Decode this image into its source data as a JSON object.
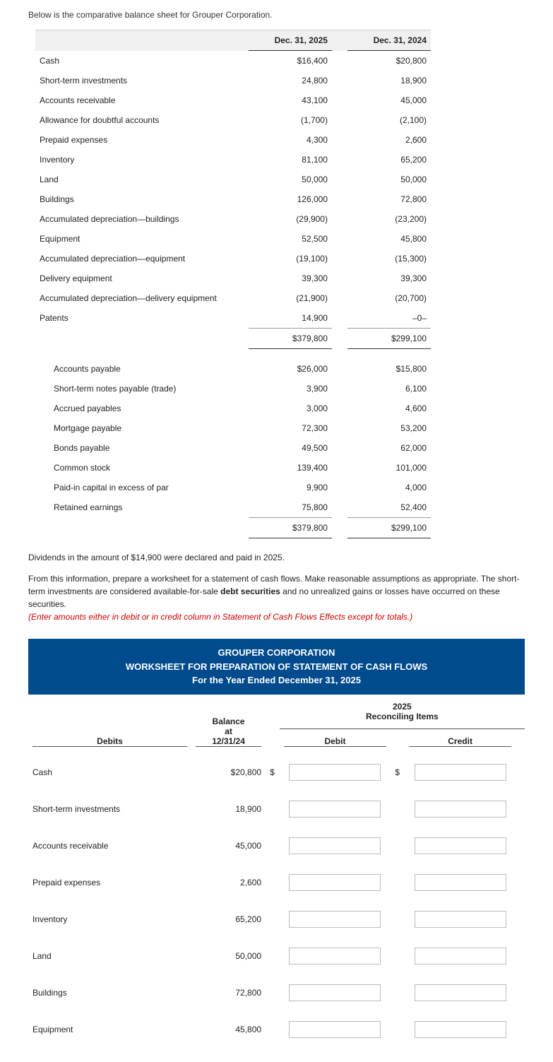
{
  "intro": "Below is the comparative balance sheet for Grouper Corporation.",
  "col_headers": {
    "c1": "Dec. 31, 2025",
    "c2": "Dec. 31, 2024"
  },
  "assets": [
    {
      "label": "Cash",
      "v1": "$16,400",
      "v2": "$20,800"
    },
    {
      "label": "Short-term investments",
      "v1": "24,800",
      "v2": "18,900"
    },
    {
      "label": "Accounts receivable",
      "v1": "43,100",
      "v2": "45,000"
    },
    {
      "label": "Allowance for doubtful accounts",
      "v1": "(1,700)",
      "v2": "(2,100)"
    },
    {
      "label": "Prepaid expenses",
      "v1": "4,300",
      "v2": "2,600"
    },
    {
      "label": "Inventory",
      "v1": "81,100",
      "v2": "65,200"
    },
    {
      "label": "Land",
      "v1": "50,000",
      "v2": "50,000"
    },
    {
      "label": "Buildings",
      "v1": "126,000",
      "v2": "72,800"
    },
    {
      "label": "Accumulated depreciation—buildings",
      "v1": "(29,900)",
      "v2": "(23,200)"
    },
    {
      "label": "Equipment",
      "v1": "52,500",
      "v2": "45,800"
    },
    {
      "label": "Accumulated depreciation—equipment",
      "v1": "(19,100)",
      "v2": "(15,300)"
    },
    {
      "label": "Delivery equipment",
      "v1": "39,300",
      "v2": "39,300"
    },
    {
      "label": "Accumulated depreciation—delivery equipment",
      "v1": "(21,900)",
      "v2": "(20,700)"
    },
    {
      "label": "Patents",
      "v1": "14,900",
      "v2": "–0–"
    }
  ],
  "assets_total": {
    "v1": "$379,800",
    "v2": "$299,100"
  },
  "liab": [
    {
      "label": "Accounts payable",
      "v1": "$26,000",
      "v2": "$15,800"
    },
    {
      "label": "Short-term notes payable (trade)",
      "v1": "3,900",
      "v2": "6,100"
    },
    {
      "label": "Accrued payables",
      "v1": "3,000",
      "v2": "4,600"
    },
    {
      "label": "Mortgage payable",
      "v1": "72,300",
      "v2": "53,200"
    },
    {
      "label": "Bonds payable",
      "v1": "49,500",
      "v2": "62,000"
    },
    {
      "label": "Common stock",
      "v1": "139,400",
      "v2": "101,000"
    },
    {
      "label": "Paid-in capital in excess of par",
      "v1": "9,900",
      "v2": "4,000"
    },
    {
      "label": "Retained earnings",
      "v1": "75,800",
      "v2": "52,400"
    }
  ],
  "liab_total": {
    "v1": "$379,800",
    "v2": "$299,100"
  },
  "notes": {
    "p1": "Dividends in the amount of $14,900 were declared and paid in 2025.",
    "p2a": "From this information, prepare a worksheet for a statement of cash flows. Make reasonable assumptions as appropriate. The short-term investments are considered available-for-sale ",
    "p2b": "debt securities",
    "p2c": " and no unrealized gains or losses have occurred on these securities.",
    "p3": "(Enter amounts either in debit or in credit column in Statement of Cash Flows Effects except for totals.)"
  },
  "ws_title": {
    "l1": "GROUPER CORPORATION",
    "l2": "WORKSHEET FOR PREPARATION OF STATEMENT OF CASH FLOWS",
    "l3": "For the Year Ended December 31, 2025"
  },
  "ws_headers": {
    "group": "2025\nReconciling Items",
    "debits": "Debits",
    "balance": "Balance\nat\n12/31/24",
    "debit": "Debit",
    "credit": "Credit"
  },
  "ws_rows": [
    {
      "label": "Cash",
      "bal": "$20,800",
      "sym": "$"
    },
    {
      "label": "Short-term investments",
      "bal": "18,900",
      "sym": ""
    },
    {
      "label": "Accounts receivable",
      "bal": "45,000",
      "sym": ""
    },
    {
      "label": "Prepaid expenses",
      "bal": "2,600",
      "sym": ""
    },
    {
      "label": "Inventory",
      "bal": "65,200",
      "sym": ""
    },
    {
      "label": "Land",
      "bal": "50,000",
      "sym": ""
    },
    {
      "label": "Buildings",
      "bal": "72,800",
      "sym": ""
    },
    {
      "label": "Equipment",
      "bal": "45,800",
      "sym": ""
    }
  ],
  "dollar": "$"
}
